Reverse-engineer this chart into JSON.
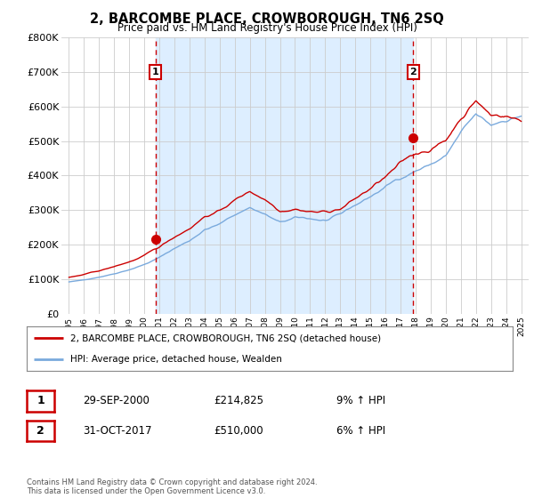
{
  "title": "2, BARCOMBE PLACE, CROWBOROUGH, TN6 2SQ",
  "subtitle": "Price paid vs. HM Land Registry's House Price Index (HPI)",
  "legend_line1": "2, BARCOMBE PLACE, CROWBOROUGH, TN6 2SQ (detached house)",
  "legend_line2": "HPI: Average price, detached house, Wealden",
  "annotation1_date": "29-SEP-2000",
  "annotation1_price": "£214,825",
  "annotation1_hpi": "9% ↑ HPI",
  "annotation2_date": "31-OCT-2017",
  "annotation2_price": "£510,000",
  "annotation2_hpi": "6% ↑ HPI",
  "footer": "Contains HM Land Registry data © Crown copyright and database right 2024.\nThis data is licensed under the Open Government Licence v3.0.",
  "red_line_color": "#cc0000",
  "blue_line_color": "#7aaadd",
  "dashed_color": "#cc0000",
  "fill_color": "#ddeeff",
  "ylim": [
    0,
    800000
  ],
  "yticks": [
    0,
    100000,
    200000,
    300000,
    400000,
    500000,
    600000,
    700000,
    800000
  ],
  "ytick_labels": [
    "£0",
    "£100K",
    "£200K",
    "£300K",
    "£400K",
    "£500K",
    "£600K",
    "£700K",
    "£800K"
  ],
  "sale1_x": 2000.75,
  "sale1_y": 214825,
  "sale2_x": 2017.833,
  "sale2_y": 510000,
  "xmin": 1994.5,
  "xmax": 2025.5,
  "background_color": "#ffffff",
  "plot_bg_color": "#ffffff",
  "grid_color": "#cccccc"
}
